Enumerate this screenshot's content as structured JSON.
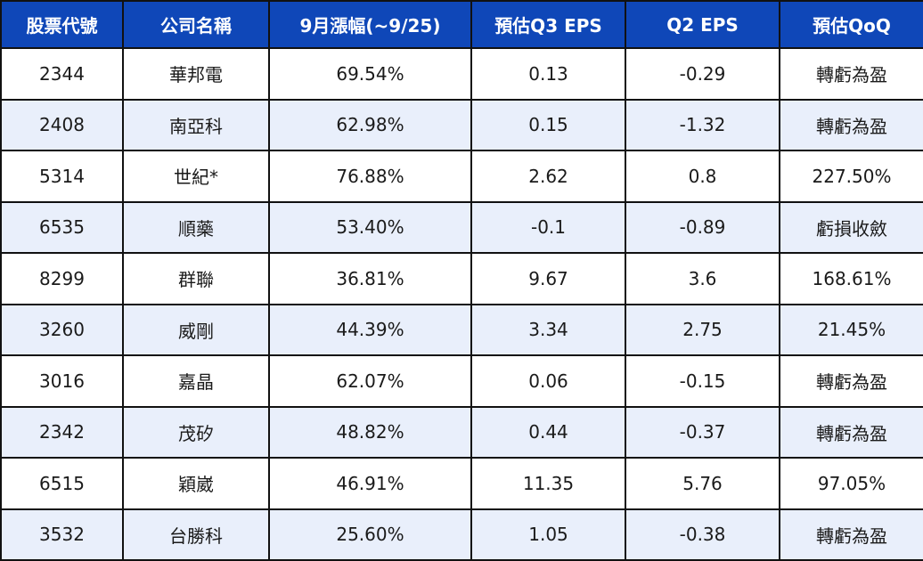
{
  "columns": [
    "股票代號",
    "公司名稱",
    "9月漲幅(~9/25)",
    "預估Q3 EPS",
    "Q2  EPS",
    "預估QoQ"
  ],
  "rows": [
    [
      "2344",
      "華邦電",
      "69.54%",
      "0.13",
      "-0.29",
      "轉虧為盈"
    ],
    [
      "2408",
      "南亞科",
      "62.98%",
      "0.15",
      "-1.32",
      "轉虧為盈"
    ],
    [
      "5314",
      "世紀*",
      "76.88%",
      "2.62",
      "0.8",
      "227.50%"
    ],
    [
      "6535",
      "順藥",
      "53.40%",
      "-0.1",
      "-0.89",
      "虧損收斂"
    ],
    [
      "8299",
      "群聯",
      "36.81%",
      "9.67",
      "3.6",
      "168.61%"
    ],
    [
      "3260",
      "威剛",
      "44.39%",
      "3.34",
      "2.75",
      "21.45%"
    ],
    [
      "3016",
      "嘉晶",
      "62.07%",
      "0.06",
      "-0.15",
      "轉虧為盈"
    ],
    [
      "2342",
      "茂矽",
      "48.82%",
      "0.44",
      "-0.37",
      "轉虧為盈"
    ],
    [
      "6515",
      "穎崴",
      "46.91%",
      "11.35",
      "5.76",
      "97.05%"
    ],
    [
      "3532",
      "台勝科",
      "25.60%",
      "1.05",
      "-0.38",
      "轉虧為盈"
    ]
  ],
  "colors": {
    "header_bg": "#0f47b8",
    "header_text": "#ffffff",
    "row_alt_bg": "#e9effb",
    "row_bg": "#ffffff",
    "border": "#111111"
  }
}
